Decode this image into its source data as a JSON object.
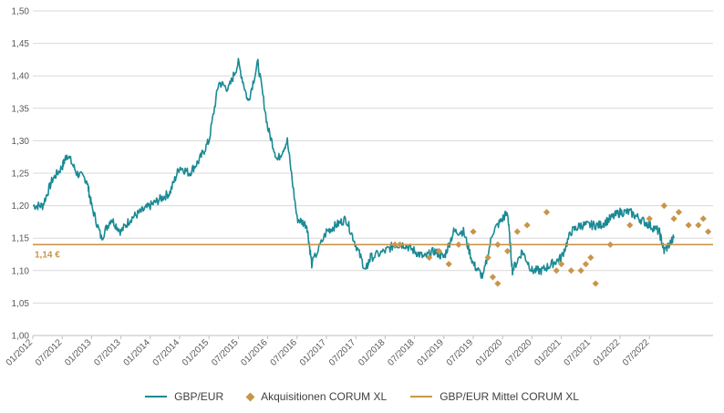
{
  "chart_data": {
    "type": "line",
    "title": "",
    "xlabel": "",
    "ylabel": "",
    "ylim": [
      1.0,
      1.5
    ],
    "yticks": [
      "1,00",
      "1,05",
      "1,10",
      "1,15",
      "1,20",
      "1,25",
      "1,30",
      "1,35",
      "1,40",
      "1,45",
      "1,50"
    ],
    "xticks": [
      "01/2012",
      "07/2012",
      "01/2013",
      "07/2013",
      "01/2014",
      "07/2014",
      "01/2015",
      "07/2015",
      "01/2016",
      "07/2016",
      "01/2017",
      "07/2017",
      "01/2018",
      "07/2018",
      "01/2019",
      "07/2019",
      "01/2020",
      "07/2020",
      "01/2021",
      "07/2021",
      "01/2022",
      "07/2022"
    ],
    "grid": "horizontal",
    "legend_position": "bottom",
    "colors": {
      "series": "#1a8a94",
      "acquisitions": "#c9954a",
      "mean": "#c9954a",
      "grid": "#d9d9d9",
      "axis": "#bfbfbf"
    },
    "series": [
      {
        "name": "GBP/EUR",
        "points": [
          [
            "2012-01",
            1.2
          ],
          [
            "2012-03",
            1.2
          ],
          [
            "2012-05",
            1.24
          ],
          [
            "2012-07",
            1.26
          ],
          [
            "2012-08",
            1.28
          ],
          [
            "2012-10",
            1.25
          ],
          [
            "2012-12",
            1.24
          ],
          [
            "2013-01",
            1.2
          ],
          [
            "2013-03",
            1.15
          ],
          [
            "2013-05",
            1.18
          ],
          [
            "2013-07",
            1.16
          ],
          [
            "2013-09",
            1.18
          ],
          [
            "2013-11",
            1.19
          ],
          [
            "2014-01",
            1.2
          ],
          [
            "2014-03",
            1.21
          ],
          [
            "2014-05",
            1.22
          ],
          [
            "2014-07",
            1.26
          ],
          [
            "2014-09",
            1.25
          ],
          [
            "2014-11",
            1.27
          ],
          [
            "2015-01",
            1.3
          ],
          [
            "2015-03",
            1.39
          ],
          [
            "2015-05",
            1.38
          ],
          [
            "2015-07",
            1.42
          ],
          [
            "2015-09",
            1.36
          ],
          [
            "2015-11",
            1.42
          ],
          [
            "2016-01",
            1.32
          ],
          [
            "2016-03",
            1.27
          ],
          [
            "2016-05",
            1.3
          ],
          [
            "2016-07",
            1.18
          ],
          [
            "2016-09",
            1.17
          ],
          [
            "2016-10",
            1.11
          ],
          [
            "2017-01",
            1.16
          ],
          [
            "2017-03",
            1.17
          ],
          [
            "2017-05",
            1.18
          ],
          [
            "2017-07",
            1.14
          ],
          [
            "2017-09",
            1.1
          ],
          [
            "2017-10",
            1.12
          ],
          [
            "2018-01",
            1.13
          ],
          [
            "2018-03",
            1.14
          ],
          [
            "2018-05",
            1.14
          ],
          [
            "2018-07",
            1.13
          ],
          [
            "2018-09",
            1.12
          ],
          [
            "2018-11",
            1.13
          ],
          [
            "2019-01",
            1.12
          ],
          [
            "2019-03",
            1.16
          ],
          [
            "2019-05",
            1.16
          ],
          [
            "2019-07",
            1.11
          ],
          [
            "2019-09",
            1.09
          ],
          [
            "2019-11",
            1.16
          ],
          [
            "2020-01",
            1.18
          ],
          [
            "2020-02",
            1.19
          ],
          [
            "2020-03",
            1.1
          ],
          [
            "2020-05",
            1.13
          ],
          [
            "2020-07",
            1.1
          ],
          [
            "2020-09",
            1.1
          ],
          [
            "2020-11",
            1.11
          ],
          [
            "2021-01",
            1.12
          ],
          [
            "2021-03",
            1.16
          ],
          [
            "2021-05",
            1.17
          ],
          [
            "2021-07",
            1.17
          ],
          [
            "2021-09",
            1.17
          ],
          [
            "2021-11",
            1.18
          ],
          [
            "2022-01",
            1.19
          ],
          [
            "2022-03",
            1.19
          ],
          [
            "2022-05",
            1.18
          ],
          [
            "2022-07",
            1.17
          ],
          [
            "2022-09",
            1.16
          ],
          [
            "2022-10",
            1.13
          ],
          [
            "2022-12",
            1.15
          ]
        ]
      },
      {
        "name": "Akquisitionen CORUM XL",
        "points": [
          [
            "2018-03",
            1.14
          ],
          [
            "2018-04",
            1.14
          ],
          [
            "2018-10",
            1.12
          ],
          [
            "2018-12",
            1.13
          ],
          [
            "2019-02",
            1.11
          ],
          [
            "2019-04",
            1.14
          ],
          [
            "2019-07",
            1.16
          ],
          [
            "2019-10",
            1.12
          ],
          [
            "2019-11",
            1.09
          ],
          [
            "2019-12",
            1.08
          ],
          [
            "2019-12",
            1.14
          ],
          [
            "2020-02",
            1.13
          ],
          [
            "2020-04",
            1.16
          ],
          [
            "2020-06",
            1.17
          ],
          [
            "2020-10",
            1.19
          ],
          [
            "2020-12",
            1.1
          ],
          [
            "2021-01",
            1.11
          ],
          [
            "2021-03",
            1.1
          ],
          [
            "2021-05",
            1.1
          ],
          [
            "2021-06",
            1.11
          ],
          [
            "2021-07",
            1.12
          ],
          [
            "2021-08",
            1.08
          ],
          [
            "2021-11",
            1.14
          ],
          [
            "2022-03",
            1.17
          ],
          [
            "2022-07",
            1.18
          ],
          [
            "2022-10",
            1.2
          ],
          [
            "2022-12",
            1.18
          ],
          [
            "2023-01",
            1.19
          ],
          [
            "2023-03",
            1.17
          ],
          [
            "2023-05",
            1.17
          ],
          [
            "2023-06",
            1.18
          ],
          [
            "2023-07",
            1.16
          ]
        ]
      },
      {
        "name": "GBP/EUR Mittel CORUM XL",
        "value": 1.14
      }
    ],
    "annotations": [
      {
        "text": "1,14 €"
      }
    ]
  },
  "legend": [
    {
      "label": "GBP/EUR"
    },
    {
      "label": "Akquisitionen CORUM XL"
    },
    {
      "label": "GBP/EUR Mittel CORUM XL"
    }
  ]
}
